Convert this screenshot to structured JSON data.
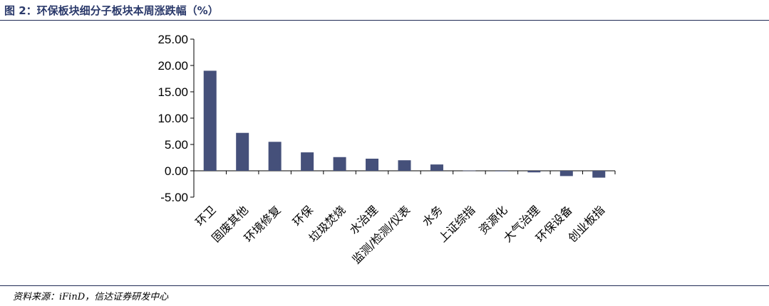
{
  "figure": {
    "title": "图 2：环保板块细分子板块本周涨跌幅（%）",
    "source": "资料来源：iFinD，信达证券研发中心"
  },
  "chart_data": {
    "type": "bar",
    "categories": [
      "环卫",
      "固废其他",
      "环境修复",
      "环保",
      "垃圾焚烧",
      "水治理",
      "监测/检测/仪表",
      "水务",
      "上证综指",
      "资源化",
      "大气治理",
      "环保设备",
      "创业板指"
    ],
    "values": [
      19.0,
      7.2,
      5.5,
      3.5,
      2.6,
      2.3,
      2.0,
      1.2,
      0.05,
      -0.1,
      -0.3,
      -1.0,
      -1.3
    ],
    "yticks": [
      "25.00",
      "20.00",
      "15.00",
      "10.00",
      "5.00",
      "0.00",
      "-5.00"
    ],
    "ylim": [
      -5,
      25
    ],
    "bar_color": "#45507a",
    "grid": false
  }
}
